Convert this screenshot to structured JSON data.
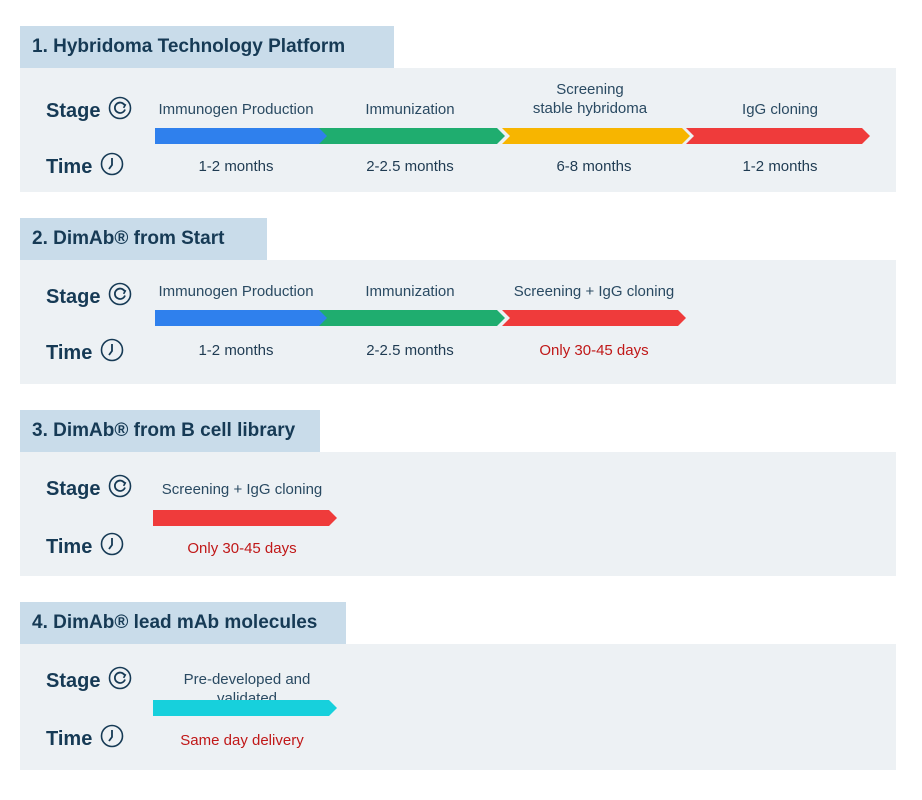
{
  "labels": {
    "stage": "Stage",
    "time": "Time"
  },
  "sections": [
    {
      "title": "1. Hybridoma Technology Platform",
      "stages": [
        {
          "name": "Immunogen Production",
          "time": "1-2 months",
          "color": "#2f80ed",
          "highlight": false
        },
        {
          "name": "Immunization",
          "time": "2-2.5 months",
          "color": "#1fad6f",
          "highlight": false
        },
        {
          "name": "Screening\nstable hybridoma",
          "time": "6-8 months",
          "color": "#f7b500",
          "highlight": false
        },
        {
          "name": "IgG cloning",
          "time": "1-2 months",
          "color": "#ef3b3b",
          "highlight": false
        }
      ]
    },
    {
      "title": "2. DimAb® from Start",
      "stages": [
        {
          "name": "Immunogen Production",
          "time": "1-2 months",
          "color": "#2f80ed",
          "highlight": false
        },
        {
          "name": "Immunization",
          "time": "2-2.5 months",
          "color": "#1fad6f",
          "highlight": false
        },
        {
          "name": "Screening + IgG cloning",
          "time": "Only 30-45 days",
          "color": "#ef3b3b",
          "highlight": true
        }
      ]
    },
    {
      "title": "3. DimAb® from B cell library",
      "stages": [
        {
          "name": "Screening + IgG cloning",
          "time": "Only 30-45 days",
          "color": "#ef3b3b",
          "highlight": true
        }
      ]
    },
    {
      "title": "4. DimAb® lead mAb molecules",
      "stages": [
        {
          "name": "Pre-developed and validated",
          "time": "Same day delivery",
          "color": "#17d0dc",
          "highlight": true
        }
      ]
    }
  ],
  "icons": {
    "stage_icon": "refresh-cycle-icon",
    "time_icon": "clock-icon"
  }
}
